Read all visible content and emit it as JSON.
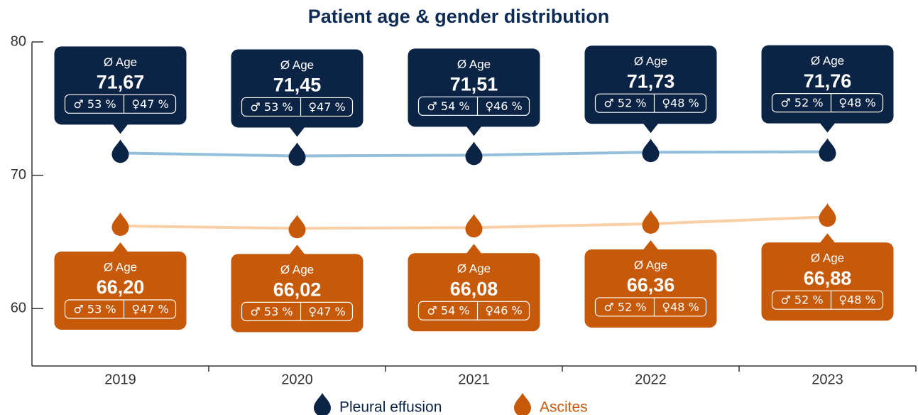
{
  "chart_data": {
    "type": "line",
    "title": "Patient age & gender distribution",
    "categories": [
      "2019",
      "2020",
      "2021",
      "2022",
      "2023"
    ],
    "ylim": [
      55.7,
      80
    ],
    "yticks": [
      60,
      70,
      80
    ],
    "box_label": "Ø Age",
    "legend": "bottom",
    "series": [
      {
        "name": "Pleural effusion",
        "color": "#0b2446",
        "line_color": "#93bfdc",
        "values": [
          71.67,
          71.45,
          71.51,
          71.73,
          71.76
        ],
        "value_labels": [
          "71,67",
          "71,45",
          "71,51",
          "71,73",
          "71,76"
        ],
        "male_labels": [
          "♂ 53 %",
          "♂ 53 %",
          "♂ 54 %",
          "♂ 52 %",
          "♂ 52 %"
        ],
        "female_labels": [
          "♀47 %",
          "♀47 %",
          "♀46 %",
          "♀48 %",
          "♀48 %"
        ]
      },
      {
        "name": "Ascites",
        "color": "#c65a0a",
        "line_color": "#f8cfa6",
        "values": [
          66.2,
          66.02,
          66.08,
          66.36,
          66.88
        ],
        "value_labels": [
          "66,20",
          "66,02",
          "66,08",
          "66,36",
          "66,88"
        ],
        "male_labels": [
          "♂ 53 %",
          "♂ 53 %",
          "♂ 54 %",
          "♂ 52 %",
          "♂ 52 %"
        ],
        "female_labels": [
          "♀47 %",
          "♀47 %",
          "♀46 %",
          "♀48 %",
          "♀48 %"
        ]
      }
    ]
  }
}
